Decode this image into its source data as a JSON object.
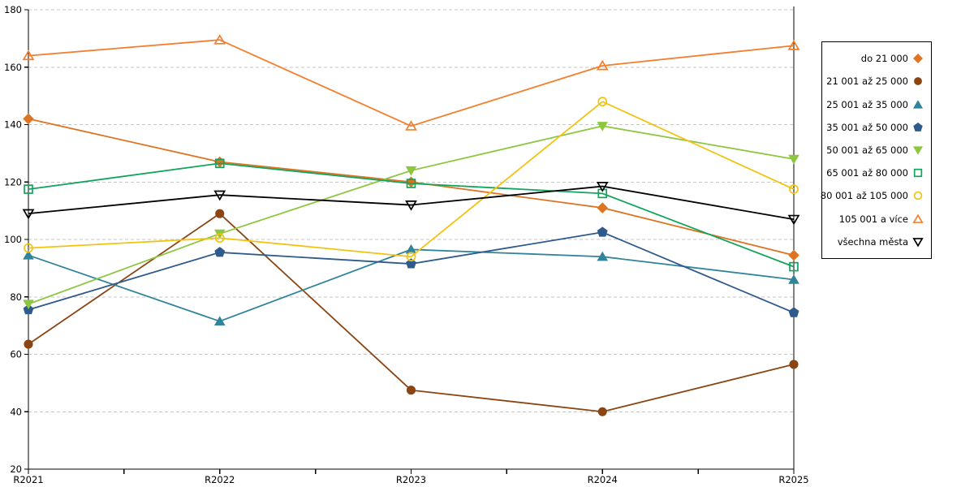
{
  "chart_data": {
    "type": "line",
    "title": "",
    "xlabel": "",
    "ylabel": "",
    "categories": [
      "R2021",
      "R2022",
      "R2023",
      "R2024",
      "R2025"
    ],
    "ylim": [
      20,
      180
    ],
    "ytick_step": 20,
    "grid": "horizontal-dashed-gray",
    "legend_position": "right-outside-boxed",
    "series": [
      {
        "name": "do 21 000",
        "color": "#DE7321",
        "marker": "diamond",
        "marker_fill": "filled",
        "values": [
          142,
          127,
          120,
          111,
          94.5
        ]
      },
      {
        "name": "21 001 až 25 000",
        "color": "#8B4513",
        "marker": "circle",
        "marker_fill": "filled",
        "values": [
          63.5,
          109,
          47.5,
          40,
          56.5
        ]
      },
      {
        "name": "25 001 až 35 000",
        "color": "#31849B",
        "marker": "triangle-up",
        "marker_fill": "filled",
        "values": [
          94.5,
          71.5,
          96.5,
          94,
          86
        ]
      },
      {
        "name": "35 001 až 50 000",
        "color": "#2F5A8C",
        "marker": "pentagon",
        "marker_fill": "filled",
        "values": [
          75.5,
          95.5,
          91.5,
          102.5,
          74.5
        ]
      },
      {
        "name": "50 001 až 65 000",
        "color": "#8DC63F",
        "marker": "triangle-down",
        "marker_fill": "filled",
        "values": [
          77.5,
          102,
          124,
          139.5,
          128
        ]
      },
      {
        "name": "65 001 až 80 000",
        "color": "#12A45C",
        "marker": "square",
        "marker_fill": "open",
        "values": [
          117.5,
          126.5,
          119.5,
          116,
          90.5
        ]
      },
      {
        "name": "80 001 až 105 000",
        "color": "#F2C30F",
        "marker": "circle",
        "marker_fill": "open",
        "values": [
          97,
          100.5,
          94,
          148,
          117.5
        ]
      },
      {
        "name": "105 001 a více",
        "color": "#F57E2C",
        "marker": "triangle-up",
        "marker_fill": "open",
        "values": [
          164,
          169.5,
          139.5,
          160.5,
          167.5
        ]
      },
      {
        "name": "všechna města",
        "color": "#000000",
        "marker": "triangle-down",
        "marker_fill": "open",
        "values": [
          109,
          115.5,
          112,
          118.5,
          107
        ]
      }
    ]
  },
  "axis_colors": {
    "spine": "#000000",
    "grid": "#c6c6c6",
    "tick_label": "#000000"
  }
}
